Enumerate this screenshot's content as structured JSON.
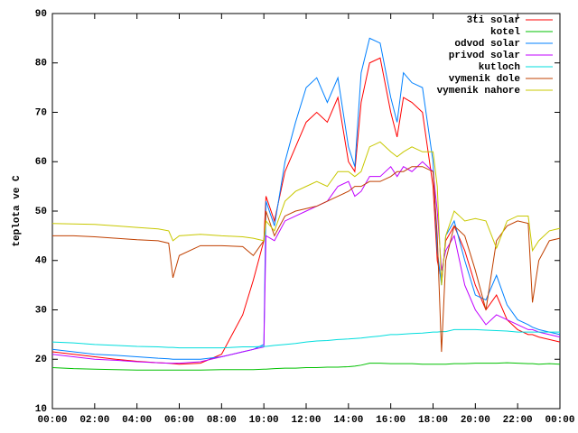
{
  "chart_data": {
    "type": "line",
    "ylabel": "teplota ve C",
    "legend": "top-right",
    "x": [
      0,
      1,
      2,
      3,
      4,
      5,
      5.5,
      5.7,
      6,
      7,
      8,
      9,
      9.5,
      10,
      10.1,
      10.5,
      11,
      11.5,
      12,
      12.5,
      13,
      13.5,
      14,
      14.3,
      14.6,
      15,
      15.5,
      16,
      16.3,
      16.6,
      17,
      17.5,
      18,
      18.2,
      18.4,
      18.6,
      19,
      19.5,
      20,
      20.5,
      21,
      21.5,
      22,
      22.5,
      22.7,
      23,
      23.5,
      24
    ],
    "xlim": [
      0,
      24
    ],
    "xticks": [
      {
        "value": 0,
        "label": "00:00"
      },
      {
        "value": 2,
        "label": "02:00"
      },
      {
        "value": 4,
        "label": "04:00"
      },
      {
        "value": 6,
        "label": "06:00"
      },
      {
        "value": 8,
        "label": "08:00"
      },
      {
        "value": 10,
        "label": "10:00"
      },
      {
        "value": 12,
        "label": "12:00"
      },
      {
        "value": 14,
        "label": "14:00"
      },
      {
        "value": 16,
        "label": "16:00"
      },
      {
        "value": 18,
        "label": "18:00"
      },
      {
        "value": 20,
        "label": "20:00"
      },
      {
        "value": 22,
        "label": "22:00"
      },
      {
        "value": 24,
        "label": "00:00"
      }
    ],
    "ylim": [
      10,
      90
    ],
    "yticks": [
      10,
      20,
      30,
      40,
      50,
      60,
      70,
      80,
      90
    ],
    "series": [
      {
        "name": "3ti solar",
        "color": "#ff0000",
        "values": [
          21.5,
          21,
          20.5,
          20,
          19.6,
          19.3,
          19.2,
          19.1,
          19,
          19.2,
          21,
          29,
          36,
          44,
          53,
          48,
          58,
          63,
          68,
          70,
          68,
          73,
          60,
          58,
          72,
          80,
          81,
          70,
          65,
          73,
          72,
          70,
          55,
          40,
          36,
          44,
          47,
          42,
          35,
          30,
          33,
          28,
          26,
          25,
          25,
          24.5,
          24,
          23.5
        ]
      },
      {
        "name": "kotel",
        "color": "#00c000",
        "values": [
          18.3,
          18.1,
          18,
          17.9,
          17.8,
          17.8,
          17.8,
          17.8,
          17.8,
          17.8,
          17.9,
          17.9,
          17.9,
          18,
          18,
          18.1,
          18.2,
          18.2,
          18.3,
          18.3,
          18.4,
          18.4,
          18.5,
          18.6,
          18.8,
          19.2,
          19.2,
          19.1,
          19.1,
          19.1,
          19.1,
          19,
          19,
          19,
          19,
          19,
          19.1,
          19.1,
          19.2,
          19.2,
          19.2,
          19.3,
          19.2,
          19.1,
          19.1,
          19,
          19.1,
          19
        ]
      },
      {
        "name": "odvod solar",
        "color": "#0080ff",
        "values": [
          22,
          21.5,
          21,
          20.8,
          20.5,
          20.2,
          20.1,
          20,
          20,
          20,
          20.5,
          21.5,
          22,
          23,
          52,
          47,
          60,
          68,
          75,
          77,
          72,
          77,
          63,
          59,
          78,
          85,
          84,
          73,
          68,
          78,
          76,
          75,
          60,
          42,
          35,
          45,
          48,
          40,
          33,
          32,
          37,
          31,
          28,
          27,
          26.5,
          26,
          25.5,
          25
        ]
      },
      {
        "name": "privod solar",
        "color": "#c000ff",
        "values": [
          21,
          20.5,
          20,
          19.8,
          19.5,
          19.3,
          19.2,
          19.2,
          19.2,
          19.5,
          20.5,
          21.5,
          22,
          22.5,
          45,
          44,
          48,
          49,
          50,
          51,
          52,
          55,
          56,
          53,
          54,
          57,
          57,
          59,
          57,
          59,
          58,
          60,
          58,
          50,
          38,
          42,
          45,
          35,
          30,
          27,
          29,
          28,
          27,
          26,
          26,
          25.5,
          25,
          24.5
        ]
      },
      {
        "name": "kutloch",
        "color": "#00dddd",
        "values": [
          23.5,
          23.3,
          23,
          22.8,
          22.6,
          22.5,
          22.4,
          22.4,
          22.3,
          22.3,
          22.3,
          22.5,
          22.5,
          22.6,
          22.6,
          22.8,
          23,
          23.2,
          23.5,
          23.7,
          23.8,
          24,
          24.1,
          24.2,
          24.3,
          24.5,
          24.7,
          25,
          25,
          25.1,
          25.2,
          25.3,
          25.5,
          25.5,
          25.6,
          25.6,
          26,
          26,
          26,
          25.9,
          25.8,
          25.7,
          25.5,
          25.5,
          25.5,
          25.5,
          25.5,
          25.5
        ]
      },
      {
        "name": "vymenik dole",
        "color": "#c04000",
        "values": [
          45,
          45,
          44.8,
          44.5,
          44.2,
          44,
          43.5,
          36.5,
          41,
          43,
          43,
          42.8,
          41,
          44,
          50,
          45,
          49,
          50,
          50.5,
          51,
          52,
          53,
          54,
          55,
          55,
          56,
          56,
          57,
          58,
          58,
          59,
          59,
          58,
          45,
          21.5,
          40,
          47,
          45,
          38,
          30,
          44,
          47,
          48,
          47.5,
          31.5,
          40,
          44,
          44.5
        ]
      },
      {
        "name": "vymenik nahore",
        "color": "#c8c800",
        "values": [
          47.5,
          47.4,
          47.3,
          47,
          46.7,
          46.4,
          46,
          44,
          45,
          45.3,
          45,
          44.8,
          44.5,
          44,
          48,
          46,
          52,
          54,
          55,
          56,
          55,
          58,
          58,
          57,
          58,
          63,
          64,
          62,
          61,
          62,
          63,
          62,
          62,
          55,
          35,
          45,
          50,
          48,
          48.5,
          48,
          42.5,
          48,
          49,
          49,
          42,
          44,
          46,
          46.5
        ]
      }
    ]
  }
}
